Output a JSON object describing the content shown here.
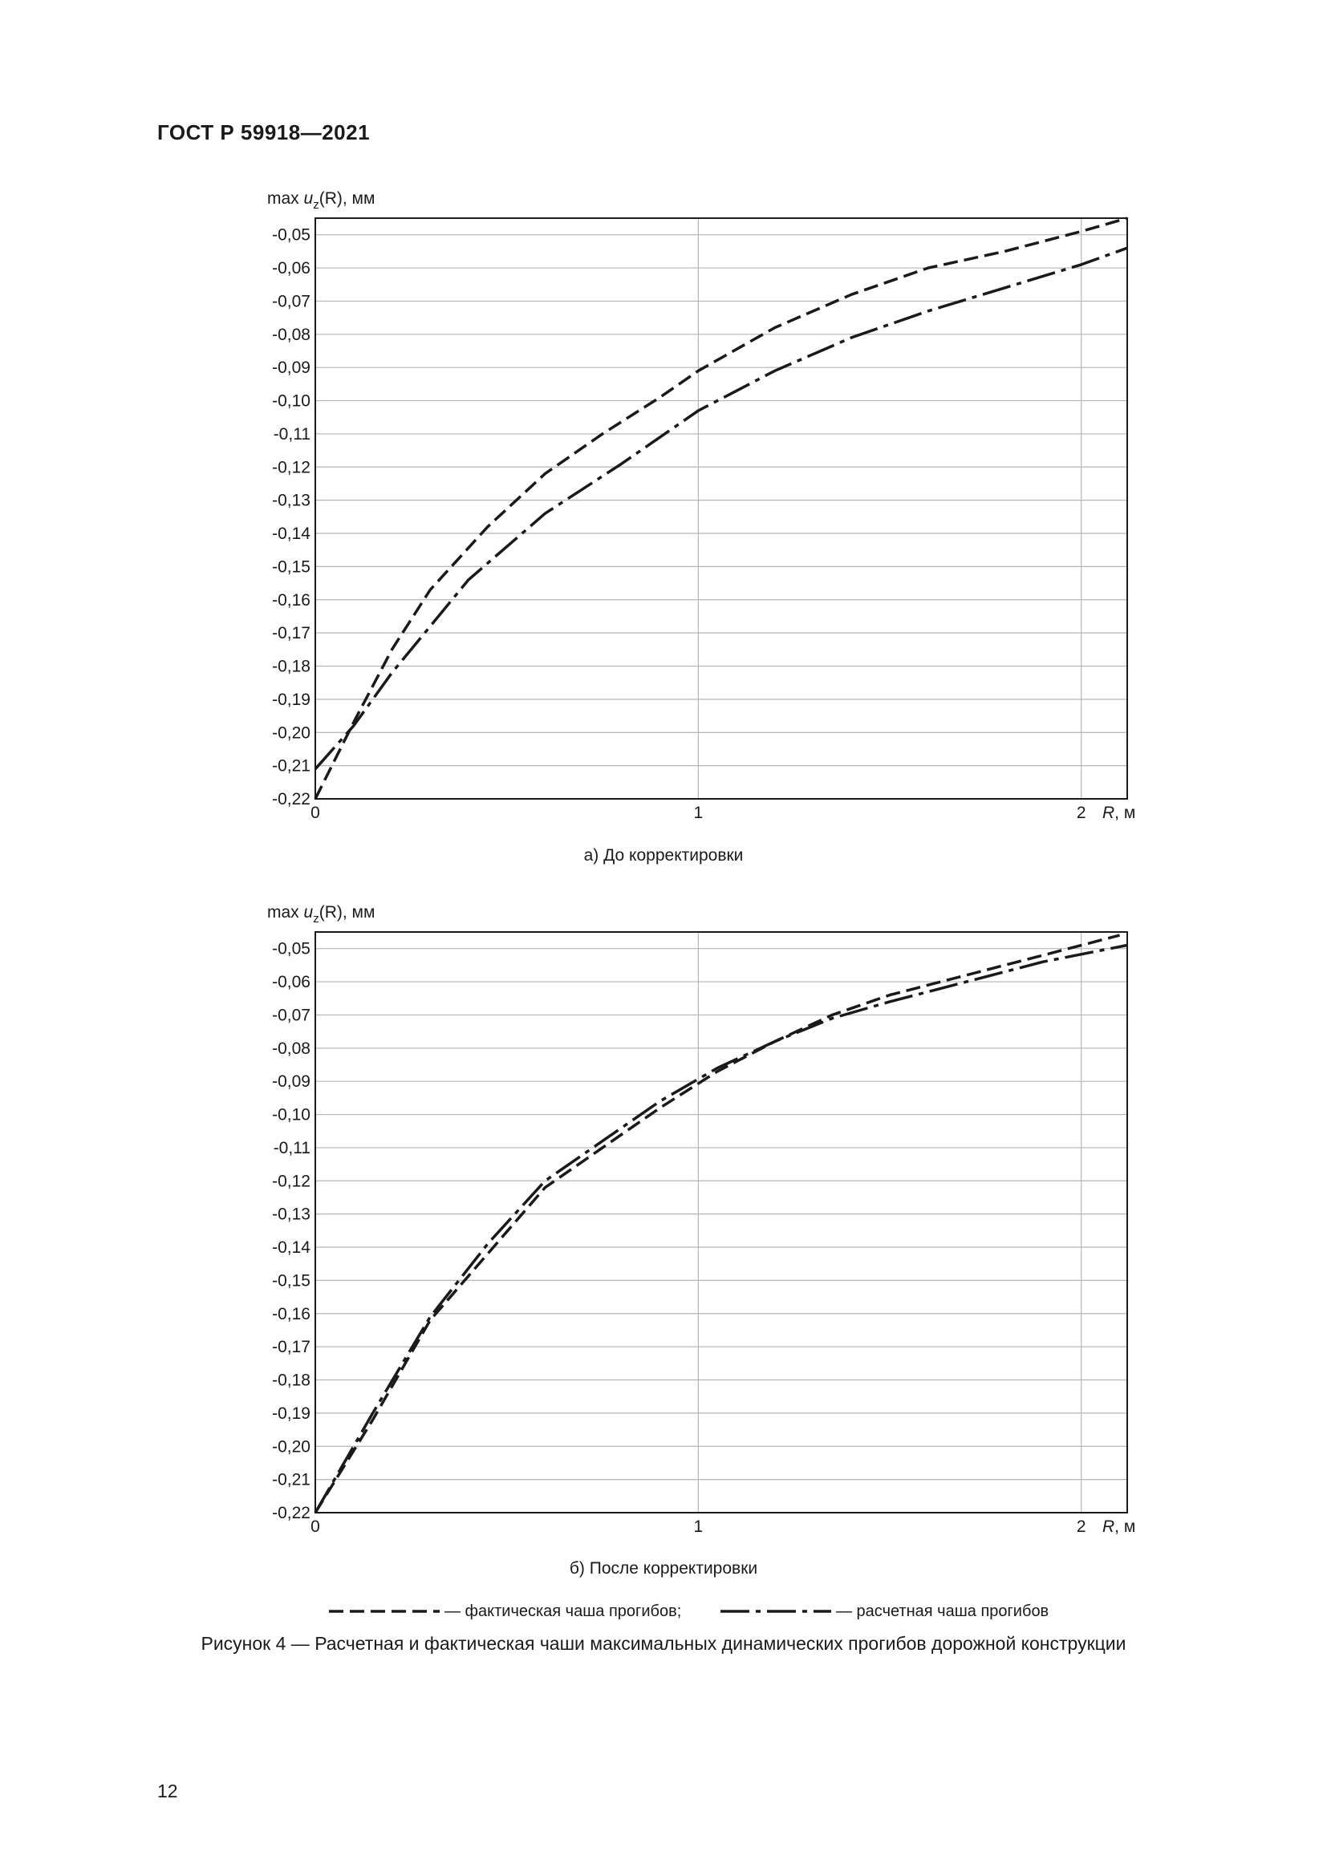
{
  "header": {
    "title": "ГОСТ Р 59918—2021"
  },
  "figure_caption": "Рисунок 4 — Расчетная и фактическая чаши максимальных динамических прогибов дорожной конструкции",
  "page_number": "12",
  "legend": {
    "actual": "— фактическая чаша прогибов;",
    "calculated": "— расчетная чаша прогибов"
  },
  "chart_data": [
    {
      "type": "line",
      "subtitle": "а) До корректировки",
      "ylabel_main": "max ",
      "ylabel_var": "u",
      "ylabel_sub": "z",
      "ylabel_rest": "(R), мм",
      "xlabel_var": "R",
      "xlabel_unit": ", м",
      "xlim": [
        0,
        2.12
      ],
      "ylim": [
        -0.22,
        -0.045
      ],
      "xticks": [
        {
          "v": 0,
          "label": "0"
        },
        {
          "v": 1,
          "label": "1"
        },
        {
          "v": 2,
          "label": "2"
        }
      ],
      "yticks": [
        {
          "v": -0.05,
          "label": "-0,05"
        },
        {
          "v": -0.06,
          "label": "-0,06"
        },
        {
          "v": -0.07,
          "label": "-0,07"
        },
        {
          "v": -0.08,
          "label": "-0,08"
        },
        {
          "v": -0.09,
          "label": "-0,09"
        },
        {
          "v": -0.1,
          "label": "-0,10"
        },
        {
          "v": -0.11,
          "label": "-0,11"
        },
        {
          "v": -0.12,
          "label": "-0,12"
        },
        {
          "v": -0.13,
          "label": "-0,13"
        },
        {
          "v": -0.14,
          "label": "-0,14"
        },
        {
          "v": -0.15,
          "label": "-0,15"
        },
        {
          "v": -0.16,
          "label": "-0,16"
        },
        {
          "v": -0.17,
          "label": "-0,17"
        },
        {
          "v": -0.18,
          "label": "-0,18"
        },
        {
          "v": -0.19,
          "label": "-0,19"
        },
        {
          "v": -0.2,
          "label": "-0,20"
        },
        {
          "v": -0.21,
          "label": "-0,21"
        },
        {
          "v": -0.22,
          "label": "-0,22"
        }
      ],
      "grid": true,
      "series": [
        {
          "style": "dashed",
          "x": [
            0,
            0.1,
            0.2,
            0.3,
            0.45,
            0.6,
            0.75,
            0.9,
            1.0,
            1.2,
            1.4,
            1.6,
            1.8,
            2.0,
            2.12
          ],
          "y": [
            -0.22,
            -0.197,
            -0.175,
            -0.157,
            -0.138,
            -0.122,
            -0.11,
            -0.099,
            -0.091,
            -0.078,
            -0.068,
            -0.06,
            -0.055,
            -0.049,
            -0.045
          ]
        },
        {
          "style": "dashdot",
          "x": [
            0,
            0.1,
            0.2,
            0.3,
            0.4,
            0.6,
            0.8,
            1.0,
            1.2,
            1.4,
            1.6,
            1.8,
            2.0,
            2.12
          ],
          "y": [
            -0.211,
            -0.198,
            -0.182,
            -0.168,
            -0.154,
            -0.134,
            -0.119,
            -0.103,
            -0.091,
            -0.081,
            -0.073,
            -0.066,
            -0.059,
            -0.054
          ]
        }
      ]
    },
    {
      "type": "line",
      "subtitle": "б) После корректировки",
      "ylabel_main": "max ",
      "ylabel_var": "u",
      "ylabel_sub": "z",
      "ylabel_rest": "(R), мм",
      "xlabel_var": "R",
      "xlabel_unit": ", м",
      "xlim": [
        0,
        2.12
      ],
      "ylim": [
        -0.22,
        -0.045
      ],
      "xticks": [
        {
          "v": 0,
          "label": "0"
        },
        {
          "v": 1,
          "label": "1"
        },
        {
          "v": 2,
          "label": "2"
        }
      ],
      "yticks": [
        {
          "v": -0.05,
          "label": "-0,05"
        },
        {
          "v": -0.06,
          "label": "-0,06"
        },
        {
          "v": -0.07,
          "label": "-0,07"
        },
        {
          "v": -0.08,
          "label": "-0,08"
        },
        {
          "v": -0.09,
          "label": "-0,09"
        },
        {
          "v": -0.1,
          "label": "-0,10"
        },
        {
          "v": -0.11,
          "label": "-0,11"
        },
        {
          "v": -0.12,
          "label": "-0,12"
        },
        {
          "v": -0.13,
          "label": "-0,13"
        },
        {
          "v": -0.14,
          "label": "-0,14"
        },
        {
          "v": -0.15,
          "label": "-0,15"
        },
        {
          "v": -0.16,
          "label": "-0,16"
        },
        {
          "v": -0.17,
          "label": "-0,17"
        },
        {
          "v": -0.18,
          "label": "-0,18"
        },
        {
          "v": -0.19,
          "label": "-0,19"
        },
        {
          "v": -0.2,
          "label": "-0,20"
        },
        {
          "v": -0.21,
          "label": "-0,21"
        },
        {
          "v": -0.22,
          "label": "-0,22"
        }
      ],
      "grid": true,
      "series": [
        {
          "style": "dashed",
          "x": [
            0,
            0.15,
            0.3,
            0.45,
            0.6,
            0.75,
            0.9,
            1.05,
            1.2,
            1.35,
            1.5,
            1.7,
            1.9,
            2.1
          ],
          "y": [
            -0.22,
            -0.192,
            -0.162,
            -0.142,
            -0.122,
            -0.11,
            -0.098,
            -0.087,
            -0.078,
            -0.07,
            -0.064,
            -0.058,
            -0.052,
            -0.046
          ]
        },
        {
          "style": "dashdot",
          "x": [
            0,
            0.15,
            0.3,
            0.45,
            0.6,
            0.75,
            0.9,
            1.05,
            1.2,
            1.35,
            1.5,
            1.7,
            1.9,
            2.12
          ],
          "y": [
            -0.22,
            -0.19,
            -0.161,
            -0.139,
            -0.12,
            -0.108,
            -0.096,
            -0.086,
            -0.078,
            -0.071,
            -0.066,
            -0.06,
            -0.054,
            -0.049
          ]
        }
      ]
    }
  ]
}
